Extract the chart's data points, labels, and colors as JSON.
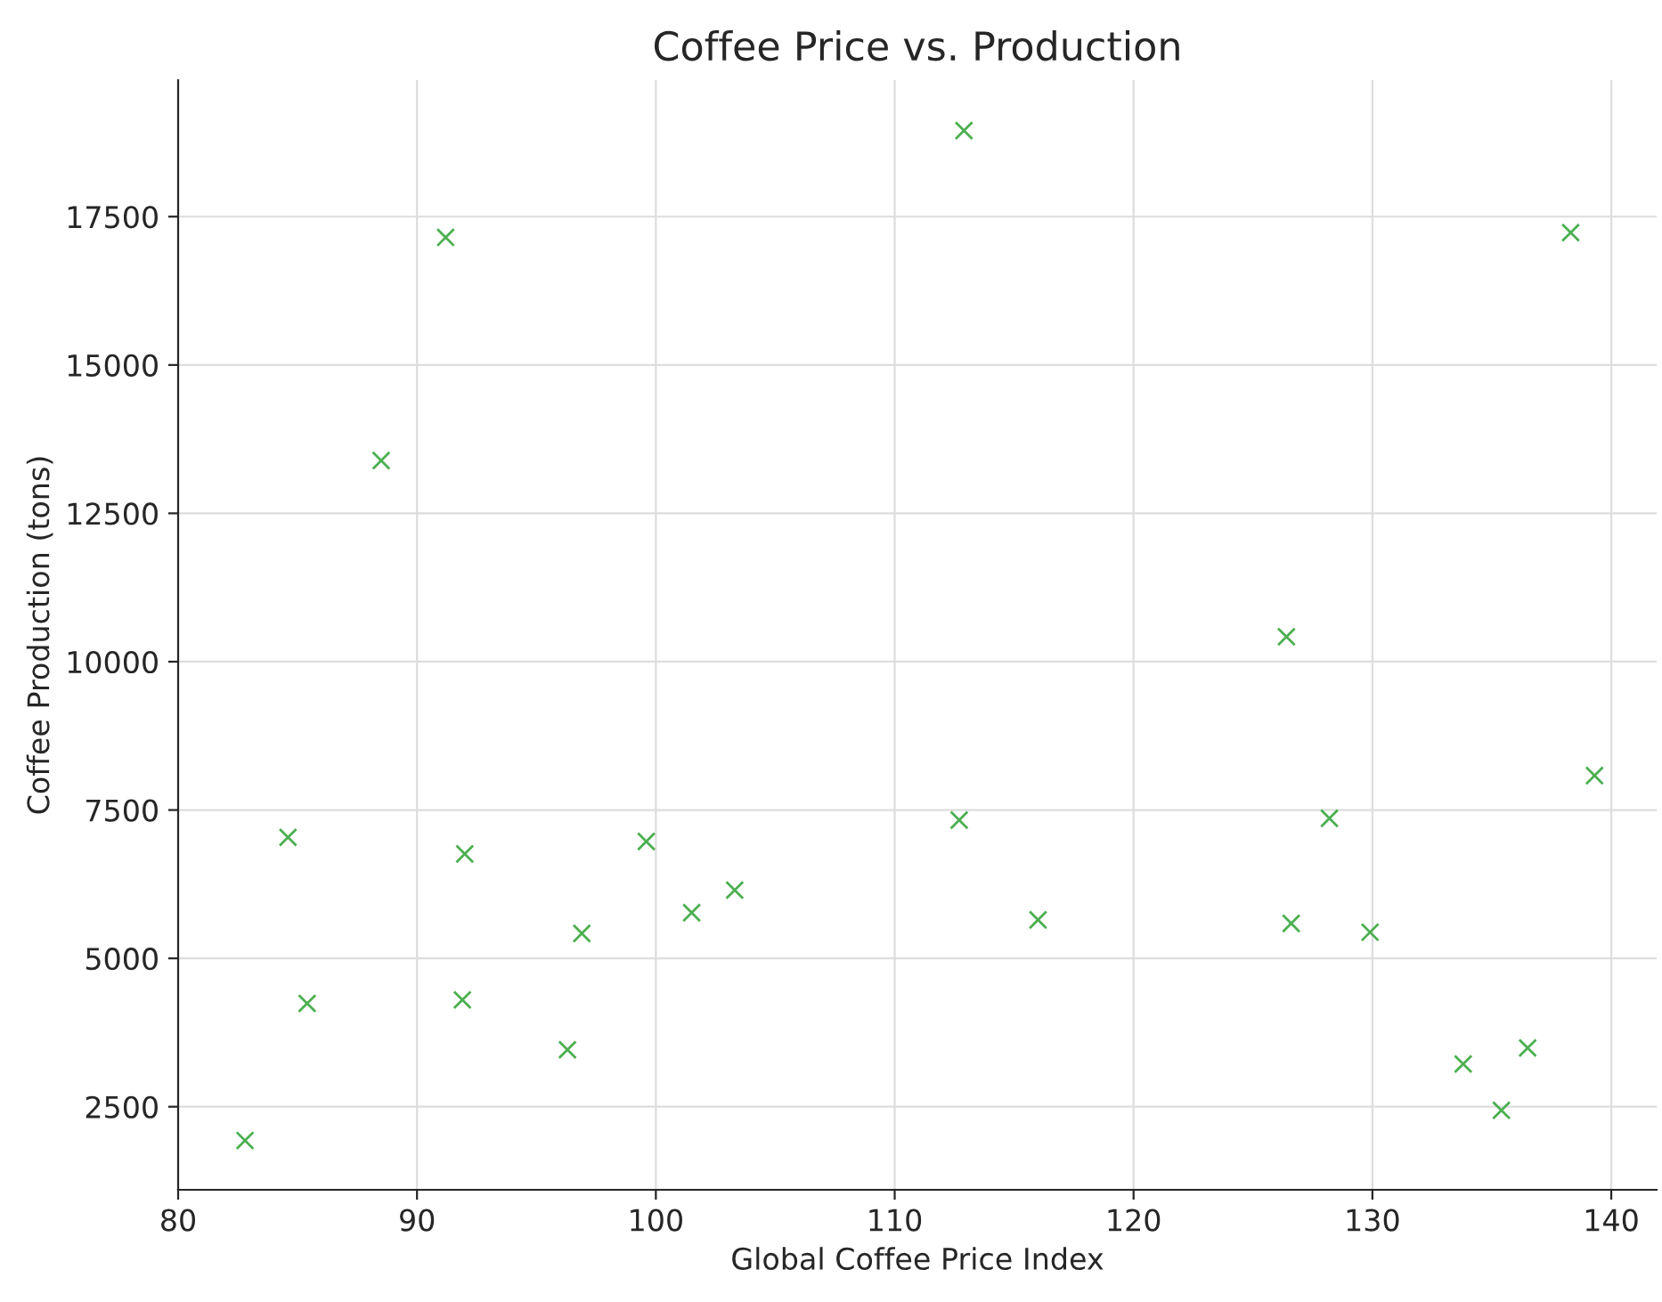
{
  "chart_data": {
    "type": "scatter",
    "title": "Coffee Price vs. Production",
    "xlabel": "Global Coffee Price Index",
    "ylabel": "Coffee Production (tons)",
    "x": [
      82.8,
      84.6,
      85.4,
      88.5,
      91.2,
      92.0,
      91.9,
      96.3,
      96.9,
      99.6,
      101.5,
      103.3,
      112.9,
      112.7,
      116.0,
      126.4,
      126.6,
      128.2,
      129.9,
      133.8,
      135.4,
      136.5,
      139.3,
      138.3
    ],
    "series": [
      {
        "color": "#4caf50",
        "values": [
          1930,
          7040,
          4240,
          13390,
          17150,
          6760,
          4300,
          3460,
          5420,
          6970,
          5770,
          6150,
          18950,
          7330,
          5650,
          10420,
          5590,
          7360,
          5440,
          3220,
          2440,
          3490,
          8080,
          17230
        ]
      }
    ],
    "marker": "cross",
    "grid": true,
    "xlim": [
      80,
      141.9
    ],
    "ylim": [
      1100,
      19800
    ],
    "xticks": [
      80,
      90,
      100,
      110,
      120,
      130,
      140
    ],
    "yticks": [
      2500,
      5000,
      7500,
      10000,
      12500,
      15000,
      17500
    ]
  }
}
